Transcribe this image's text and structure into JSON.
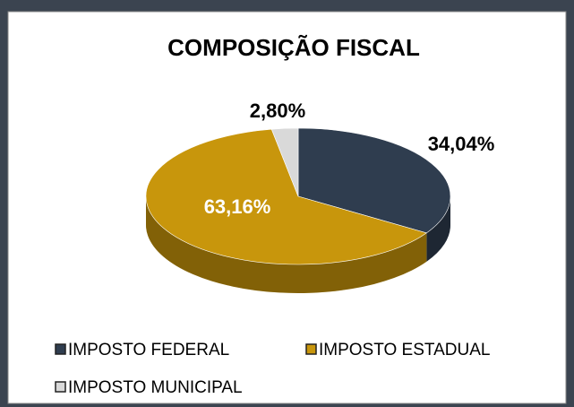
{
  "chart_data": {
    "type": "pie",
    "title": "COMPOSIÇÃO FISCAL",
    "categories": [
      "IMPOSTO FEDERAL",
      "IMPOSTO ESTADUAL",
      "IMPOSTO MUNICIPAL"
    ],
    "values": [
      34.04,
      63.16,
      2.8
    ],
    "value_labels": [
      "34,04%",
      "63,16%",
      "2,80%"
    ],
    "colors": [
      "#2f3d4f",
      "#c8960c",
      "#d9d9d9"
    ],
    "legend": "bottom"
  }
}
